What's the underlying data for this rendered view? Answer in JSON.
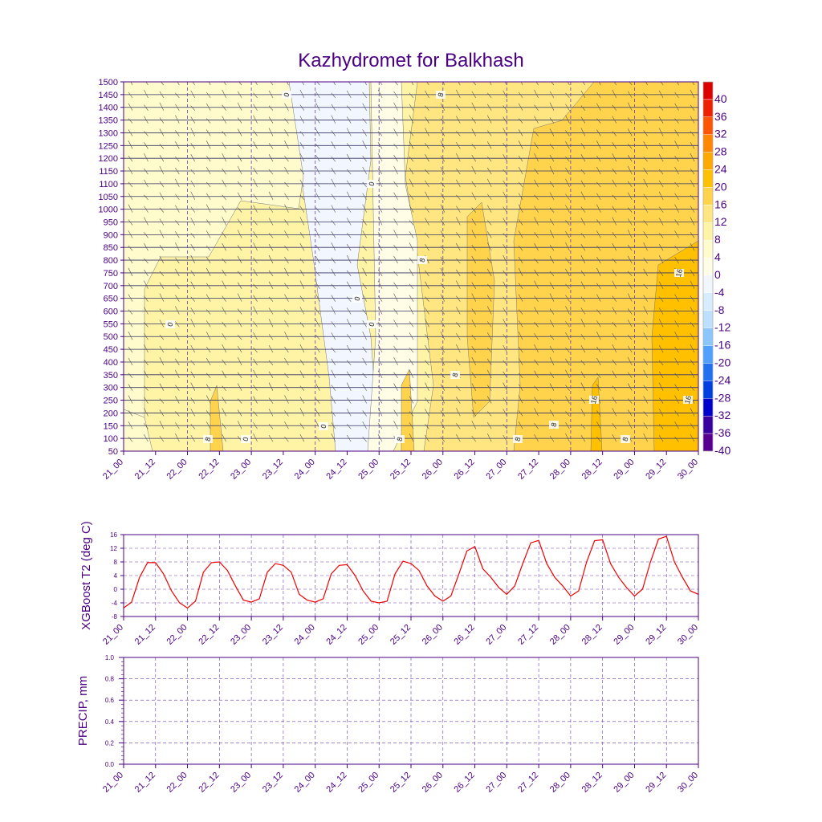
{
  "title": "Kazhydromet for Balkhash",
  "time_labels": [
    "21_00",
    "21_12",
    "22_00",
    "22_12",
    "23_00",
    "23_12",
    "24_00",
    "24_12",
    "25_00",
    "25_12",
    "26_00",
    "26_12",
    "27_00",
    "27_12",
    "28_00",
    "28_12",
    "29_00",
    "29_12",
    "30_00"
  ],
  "chart_data": [
    {
      "type": "heatmap",
      "title": "Kazhydromet for Balkhash",
      "xlabel": "",
      "ylabel": "",
      "y_levels": [
        1500,
        1450,
        1400,
        1350,
        1300,
        1250,
        1200,
        1150,
        1100,
        1050,
        1000,
        950,
        900,
        850,
        800,
        750,
        700,
        650,
        600,
        550,
        500,
        450,
        400,
        350,
        300,
        250,
        200,
        150,
        100,
        50
      ],
      "ylim": [
        50,
        1500
      ],
      "colorbar": {
        "labels": [
          "40",
          "36",
          "32",
          "28",
          "24",
          "20",
          "16",
          "12",
          "8",
          "4",
          "0",
          "-4",
          "-8",
          "-12",
          "-16",
          "-20",
          "-24",
          "-28",
          "-32",
          "-36",
          "-40"
        ],
        "colors": [
          "#dd0000",
          "#ee2200",
          "#ff5500",
          "#ff8800",
          "#ffa800",
          "#ffc000",
          "#ffd34c",
          "#ffe680",
          "#fff3a6",
          "#fffbcc",
          "#fffde6",
          "#f2f6ff",
          "#d8ecff",
          "#bde0ff",
          "#8cc6ff",
          "#50a0ff",
          "#2070f0",
          "#0040e0",
          "#0000cc",
          "#3800a0",
          "#5a0090"
        ]
      },
      "contour_labels": [
        "0",
        "0",
        "0",
        "0",
        "0",
        "0",
        "0",
        "8",
        "8",
        "8",
        "8",
        "8",
        "8",
        "8",
        "8",
        "16",
        "16",
        "16"
      ],
      "x_ticks_ref": "time_labels"
    },
    {
      "type": "line",
      "ylabel": "XGBoost T2 (deg C)",
      "y_ticks": [
        "16",
        "12",
        "8",
        "4",
        "0",
        "-4",
        "-8"
      ],
      "ylim": [
        -8,
        16
      ],
      "series": [
        {
          "name": "T2",
          "color": "#ee0000",
          "values": [
            -5.5,
            -3.8,
            3.5,
            7.8,
            7.8,
            4.5,
            -0.5,
            -4,
            -5.5,
            -3.5,
            5,
            7.8,
            8,
            5.5,
            1,
            -3.2,
            -3.8,
            -2.8,
            5,
            7.5,
            7,
            5,
            -1.5,
            -3.2,
            -3.8,
            -2.8,
            4.5,
            7,
            7.2,
            4,
            -0.5,
            -3.5,
            -4,
            -3.5,
            4.5,
            8.2,
            7.5,
            5.5,
            1,
            -2,
            -3.5,
            -2,
            4.5,
            11.2,
            12.5,
            6,
            3.5,
            0.5,
            -1.5,
            1,
            7.5,
            13.6,
            14.3,
            7.5,
            3.5,
            1,
            -2,
            -0.5,
            8,
            14.2,
            14.5,
            7.5,
            3.5,
            0.5,
            -2,
            0,
            8,
            14.7,
            15.5,
            8,
            3.5,
            -0.5,
            -1.5
          ]
        }
      ],
      "x_ticks_ref": "time_labels"
    },
    {
      "type": "line",
      "ylabel": "PRECIP, mm",
      "y_ticks": [
        "1.0",
        "0.8",
        "0.6",
        "0.4",
        "0.2",
        "0.0"
      ],
      "ylim": [
        0,
        1
      ],
      "series": [],
      "x_ticks_ref": "time_labels"
    }
  ]
}
